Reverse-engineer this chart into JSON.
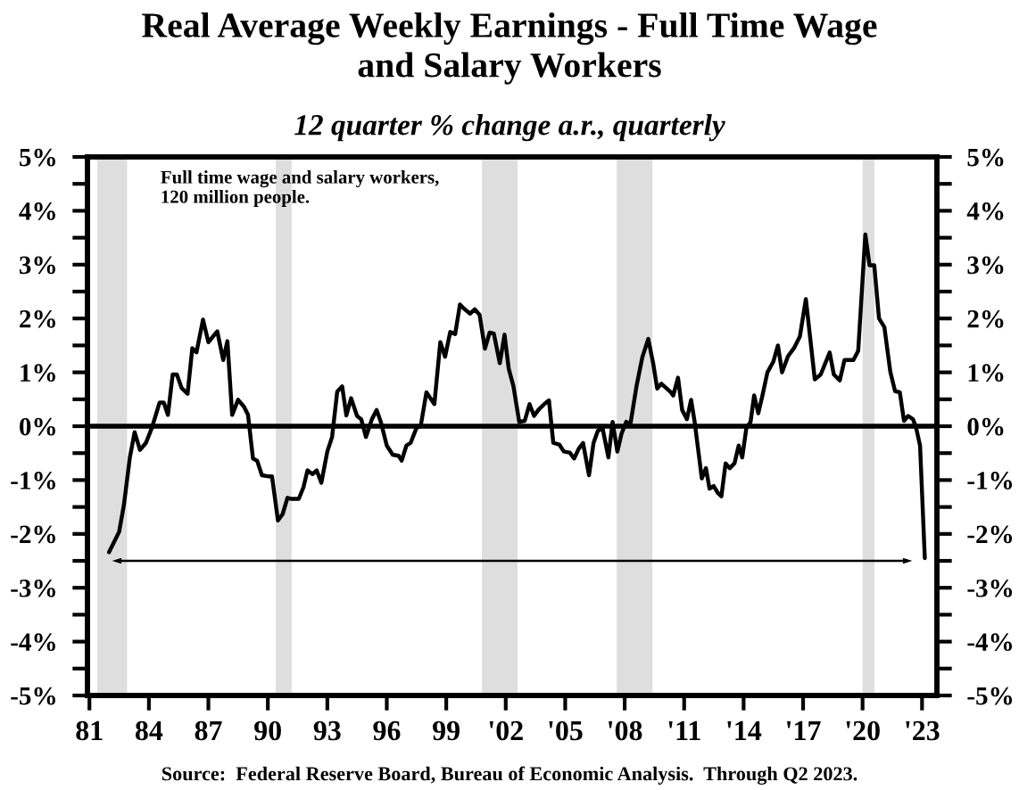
{
  "chart_data": {
    "type": "line",
    "title": "Real Average Weekly Earnings - Full Time Wage\nand Salary Workers",
    "subtitle": "12 quarter % change a.r., quarterly",
    "annotations": [
      "Full time wage and salary workers,\n120 million people.",
      "Source:  Federal Reserve Board, Bureau of Economic Analysis.  Through Q2 2023."
    ],
    "xlim": [
      1980.9,
      2023.75
    ],
    "xticks": [
      {
        "value": 1981,
        "label": "81"
      },
      {
        "value": 1984,
        "label": "84"
      },
      {
        "value": 1987,
        "label": "87"
      },
      {
        "value": 1990,
        "label": "90"
      },
      {
        "value": 1993,
        "label": "93"
      },
      {
        "value": 1996,
        "label": "96"
      },
      {
        "value": 1999,
        "label": "99"
      },
      {
        "value": 2002,
        "label": "'02"
      },
      {
        "value": 2005,
        "label": "'05"
      },
      {
        "value": 2008,
        "label": "'08"
      },
      {
        "value": 2011,
        "label": "'11"
      },
      {
        "value": 2014,
        "label": "'14"
      },
      {
        "value": 2017,
        "label": "'17"
      },
      {
        "value": 2020,
        "label": "'20"
      },
      {
        "value": 2023,
        "label": "'23"
      }
    ],
    "ylim": [
      -5,
      5
    ],
    "yticks": [
      {
        "value": -5,
        "label": "-5%"
      },
      {
        "value": -4.5,
        "label": null
      },
      {
        "value": -4,
        "label": "-4%"
      },
      {
        "value": -3.5,
        "label": null
      },
      {
        "value": -3,
        "label": "-3%"
      },
      {
        "value": -2.5,
        "label": null
      },
      {
        "value": -2,
        "label": "-2%"
      },
      {
        "value": -1.5,
        "label": null
      },
      {
        "value": -1,
        "label": "-1%"
      },
      {
        "value": -0.5,
        "label": null
      },
      {
        "value": 0,
        "label": "0%"
      },
      {
        "value": 0.5,
        "label": null
      },
      {
        "value": 1,
        "label": "1%"
      },
      {
        "value": 1.5,
        "label": null
      },
      {
        "value": 2,
        "label": "2%"
      },
      {
        "value": 2.5,
        "label": null
      },
      {
        "value": 3,
        "label": "3%"
      },
      {
        "value": 3.5,
        "label": null
      },
      {
        "value": 4,
        "label": "4%"
      },
      {
        "value": 4.5,
        "label": null
      },
      {
        "value": 5,
        "label": "5%"
      }
    ],
    "y2lim": [
      -5,
      5
    ],
    "y2ticks": [
      {
        "value": -5,
        "label": "-5%"
      },
      {
        "value": -4.5,
        "label": null
      },
      {
        "value": -4,
        "label": "-4%"
      },
      {
        "value": -3.5,
        "label": null
      },
      {
        "value": -3,
        "label": "-3%"
      },
      {
        "value": -2.5,
        "label": null
      },
      {
        "value": -2,
        "label": "-2%"
      },
      {
        "value": -1.5,
        "label": null
      },
      {
        "value": -1,
        "label": "-1%"
      },
      {
        "value": -0.5,
        "label": null
      },
      {
        "value": 0,
        "label": "0%"
      },
      {
        "value": 0.5,
        "label": null
      },
      {
        "value": 1,
        "label": "1%"
      },
      {
        "value": 1.5,
        "label": null
      },
      {
        "value": 2,
        "label": "2%"
      },
      {
        "value": 2.5,
        "label": null
      },
      {
        "value": 3,
        "label": "3%"
      },
      {
        "value": 3.5,
        "label": null
      },
      {
        "value": 4,
        "label": "4%"
      },
      {
        "value": 4.5,
        "label": null
      },
      {
        "value": 5,
        "label": "5%"
      }
    ],
    "bands": [
      {
        "axis": "x",
        "from": 1981.4,
        "to": 1982.9,
        "color": "#dedede"
      },
      {
        "axis": "x",
        "from": 1990.4,
        "to": 1991.2,
        "color": "#dedede"
      },
      {
        "axis": "x",
        "from": 2000.8,
        "to": 2002.6,
        "color": "#dedede"
      },
      {
        "axis": "x",
        "from": 2007.6,
        "to": 2009.4,
        "color": "#dedede"
      },
      {
        "axis": "x",
        "from": 2020.0,
        "to": 2020.6,
        "color": "#dedede"
      }
    ],
    "ref_lines": [
      {
        "axis": "y",
        "value": 0,
        "color": "#000000"
      }
    ],
    "series": [
      {
        "color": "#000000",
        "x": [
          1981.99,
          1982.5,
          1982.74,
          1983.04,
          1983.28,
          1983.55,
          1983.85,
          1984.15,
          1984.54,
          1984.75,
          1984.96,
          1985.2,
          1985.41,
          1985.65,
          1985.95,
          1986.19,
          1986.4,
          1986.73,
          1987.0,
          1987.45,
          1987.75,
          1987.96,
          1988.2,
          1988.5,
          1988.8,
          1989.0,
          1989.25,
          1989.46,
          1989.7,
          1990.0,
          1990.21,
          1990.51,
          1990.75,
          1990.99,
          1991.2,
          1991.56,
          1991.8,
          1992.0,
          1992.25,
          1992.46,
          1992.7,
          1993.0,
          1993.24,
          1993.5,
          1993.75,
          1993.96,
          1994.2,
          1994.5,
          1994.71,
          1994.95,
          1995.25,
          1995.49,
          1995.7,
          1996.0,
          1996.3,
          1996.6,
          1996.75,
          1996.99,
          1997.2,
          1997.5,
          1997.71,
          1998.0,
          1998.4,
          1998.7,
          1998.94,
          1999.2,
          1999.45,
          1999.69,
          1999.9,
          2000.2,
          2000.44,
          2000.68,
          2000.95,
          2001.19,
          2001.4,
          2001.7,
          2001.94,
          2002.15,
          2002.39,
          2002.68,
          2002.96,
          2003.2,
          2003.43,
          2003.64,
          2003.94,
          2004.18,
          2004.4,
          2004.7,
          2004.93,
          2005.23,
          2005.45,
          2005.68,
          2005.9,
          2006.2,
          2006.43,
          2006.64,
          2006.88,
          2007.18,
          2007.39,
          2007.63,
          2007.84,
          2008.08,
          2008.29,
          2008.6,
          2008.89,
          2009.19,
          2009.43,
          2009.64,
          2009.85,
          2010.09,
          2010.33,
          2010.45,
          2010.69,
          2010.9,
          2011.14,
          2011.35,
          2011.53,
          2011.74,
          2011.89,
          2012.1,
          2012.28,
          2012.49,
          2012.7,
          2012.88,
          2013.09,
          2013.3,
          2013.54,
          2013.75,
          2013.93,
          2014.14,
          2014.35,
          2014.53,
          2014.74,
          2014.95,
          2015.2,
          2015.5,
          2015.73,
          2015.94,
          2016.24,
          2016.54,
          2016.84,
          2017.14,
          2017.59,
          2017.89,
          2018.34,
          2018.55,
          2018.85,
          2019.09,
          2019.54,
          2019.78,
          2020.14,
          2020.35,
          2020.59,
          2020.83,
          2021.1,
          2021.4,
          2021.64,
          2021.88,
          2022.09,
          2022.3,
          2022.54,
          2022.69,
          2022.9,
          2023.14
        ],
        "values": [
          -2.34,
          -1.96,
          -1.46,
          -0.58,
          -0.11,
          -0.44,
          -0.31,
          -0.03,
          0.44,
          0.44,
          0.21,
          0.96,
          0.96,
          0.71,
          0.6,
          1.45,
          1.37,
          1.98,
          1.56,
          1.76,
          1.23,
          1.58,
          0.21,
          0.49,
          0.36,
          0.21,
          -0.6,
          -0.64,
          -0.91,
          -0.93,
          -0.93,
          -1.75,
          -1.63,
          -1.33,
          -1.35,
          -1.35,
          -1.13,
          -0.82,
          -0.89,
          -0.82,
          -1.05,
          -0.47,
          -0.2,
          0.64,
          0.74,
          0.2,
          0.52,
          0.19,
          0.13,
          -0.2,
          0.13,
          0.3,
          0.08,
          -0.36,
          -0.53,
          -0.55,
          -0.64,
          -0.36,
          -0.31,
          -0.03,
          0.0,
          0.63,
          0.41,
          1.56,
          1.29,
          1.75,
          1.71,
          2.26,
          2.18,
          2.09,
          2.17,
          2.07,
          1.44,
          1.74,
          1.72,
          1.17,
          1.7,
          1.07,
          0.74,
          0.08,
          0.1,
          0.41,
          0.19,
          0.3,
          0.41,
          0.48,
          -0.31,
          -0.34,
          -0.47,
          -0.49,
          -0.6,
          -0.42,
          -0.31,
          -0.91,
          -0.31,
          -0.09,
          -0.03,
          -0.58,
          0.08,
          -0.47,
          -0.14,
          0.08,
          0.04,
          0.75,
          1.28,
          1.62,
          1.18,
          0.7,
          0.79,
          0.71,
          0.63,
          0.57,
          0.9,
          0.3,
          0.13,
          0.49,
          0.08,
          -0.53,
          -0.97,
          -0.78,
          -1.16,
          -1.11,
          -1.24,
          -1.3,
          -0.69,
          -0.78,
          -0.69,
          -0.36,
          -0.58,
          -0.03,
          0.08,
          0.57,
          0.24,
          0.57,
          1.0,
          1.2,
          1.5,
          1.0,
          1.3,
          1.45,
          1.67,
          2.36,
          0.87,
          0.96,
          1.37,
          0.96,
          0.85,
          1.23,
          1.23,
          1.4,
          3.56,
          2.99,
          2.99,
          2.0,
          1.84,
          1.01,
          0.65,
          0.63,
          0.1,
          0.19,
          0.13,
          -0.01,
          -0.36,
          -2.45
        ]
      }
    ]
  }
}
